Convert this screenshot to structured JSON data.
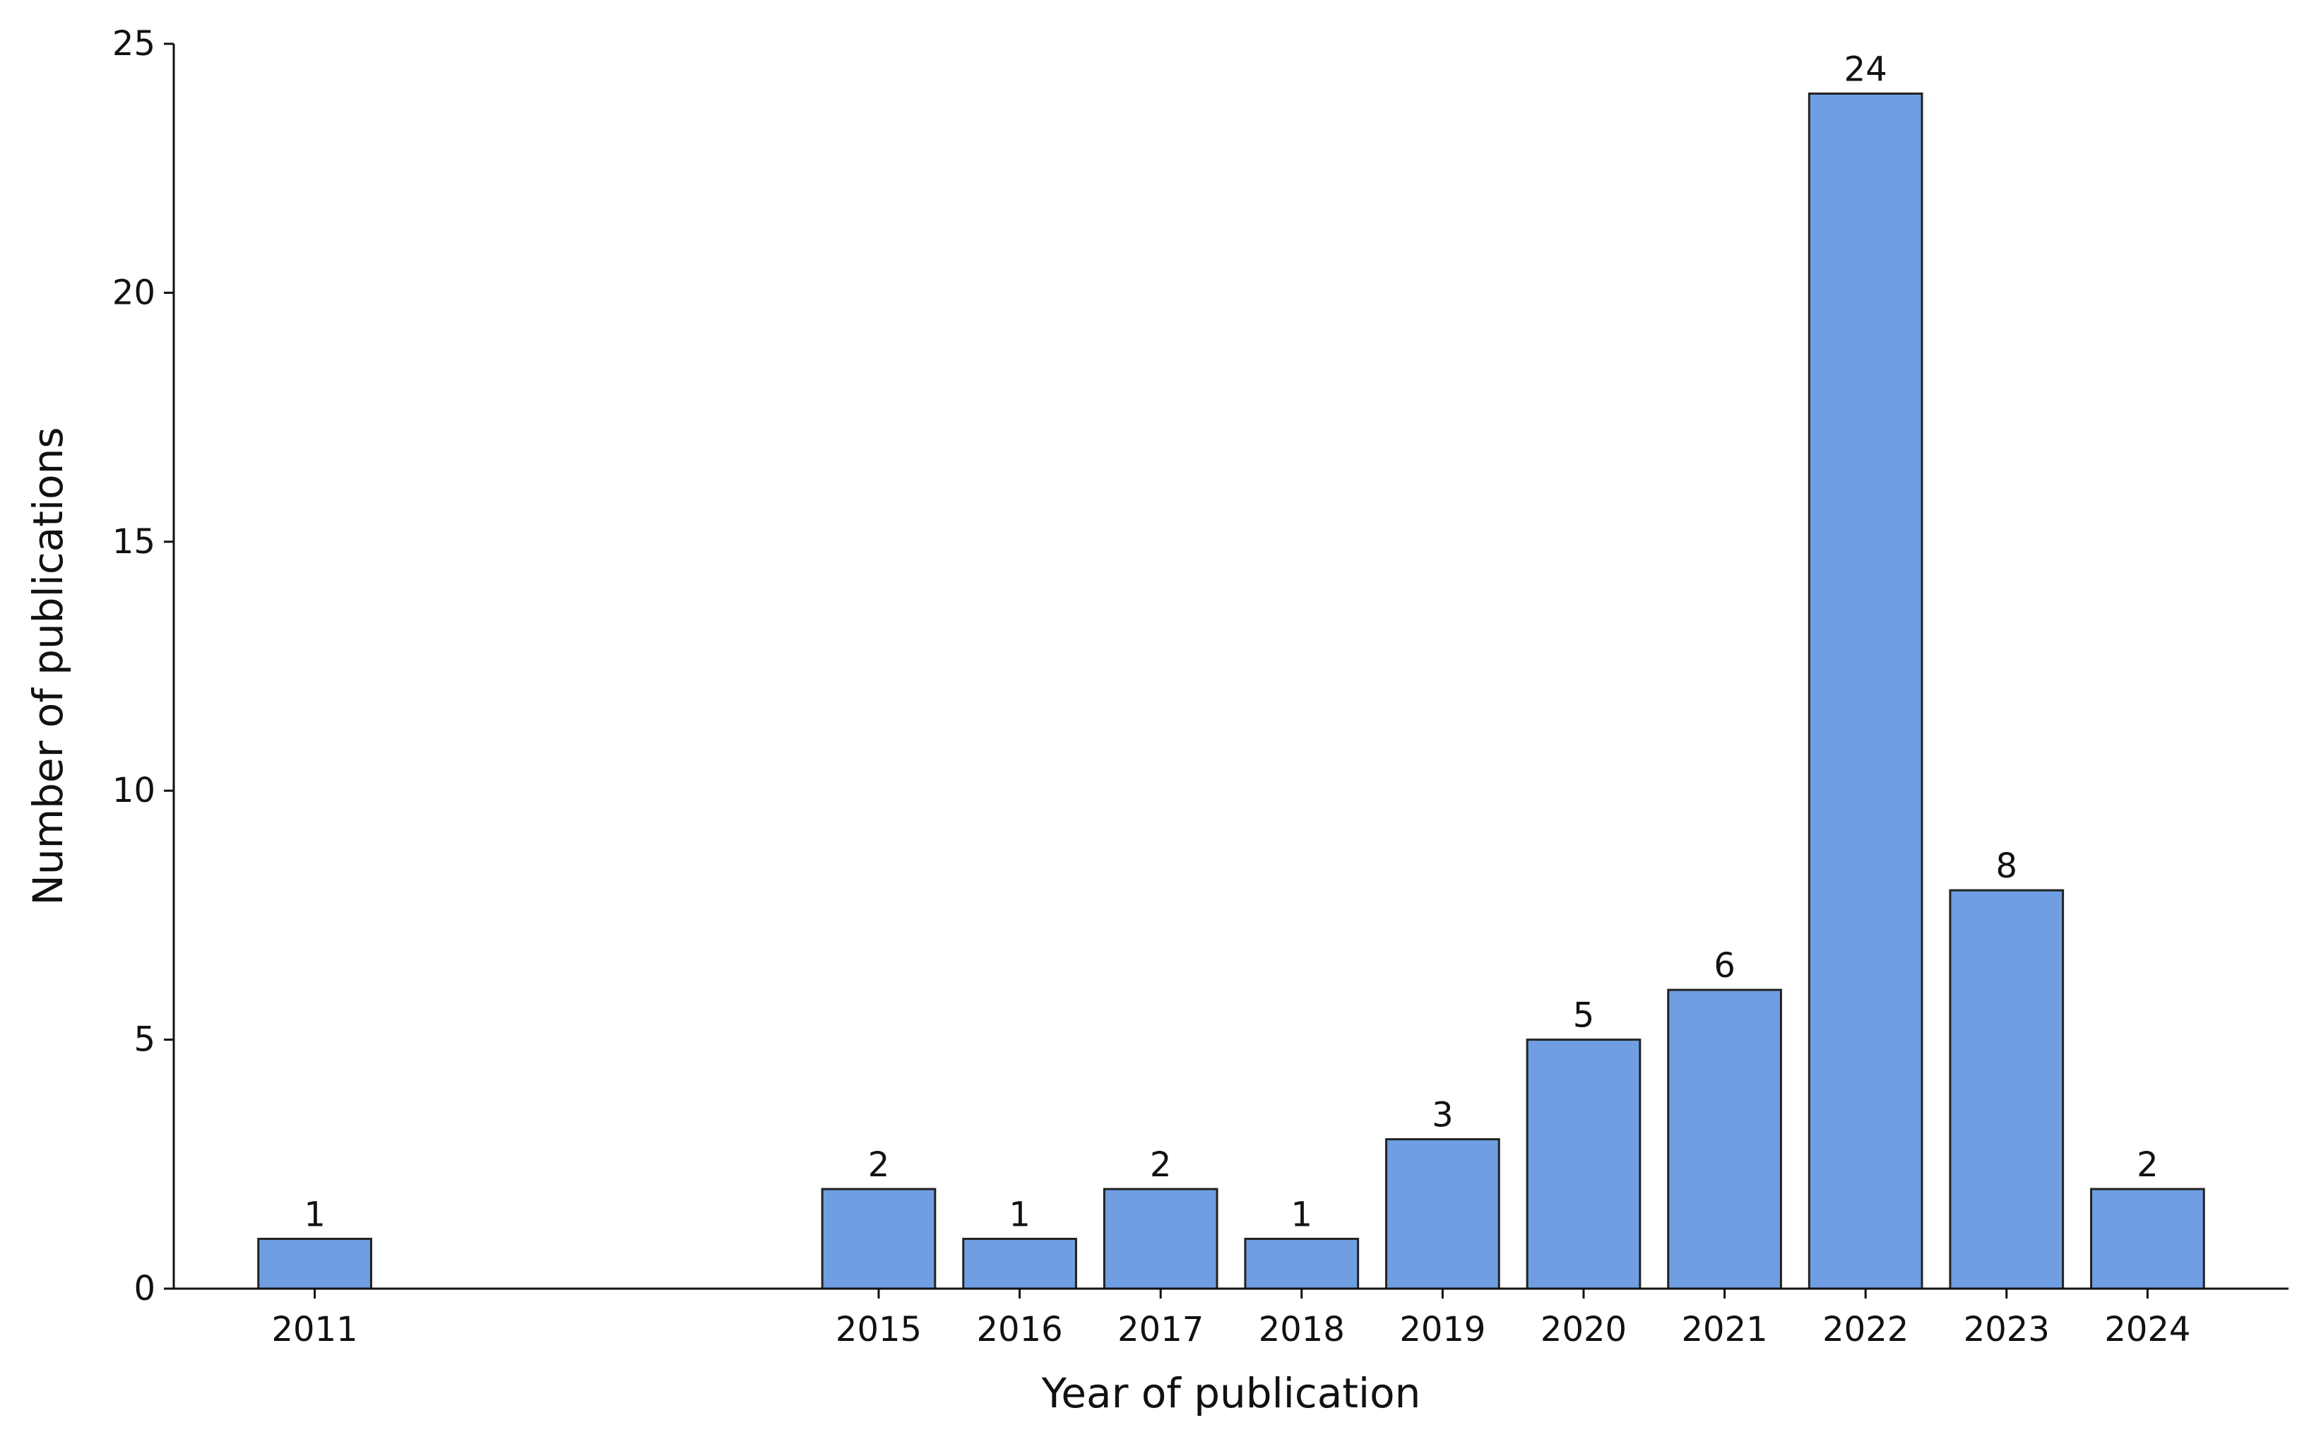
{
  "chart_data": {
    "type": "bar",
    "x": [
      2011,
      2015,
      2016,
      2017,
      2018,
      2019,
      2020,
      2021,
      2022,
      2023,
      2024
    ],
    "values": [
      1,
      2,
      1,
      2,
      1,
      3,
      5,
      6,
      24,
      8,
      2
    ],
    "data_labels": [
      "1",
      "2",
      "1",
      "2",
      "1",
      "3",
      "5",
      "6",
      "24",
      "8",
      "2"
    ],
    "title": "",
    "xlabel": "Year of publication",
    "ylabel": "Number of publications",
    "xlim": [
      2010,
      2025
    ],
    "ylim": [
      0,
      25
    ],
    "yticks": [
      0,
      5,
      10,
      15,
      20,
      25
    ],
    "xticks": [
      2011,
      2015,
      2016,
      2017,
      2018,
      2019,
      2020,
      2021,
      2022,
      2023,
      2024
    ],
    "grid": false,
    "legend": "none",
    "colors": {
      "bar_fill": "#6f9fe2",
      "bar_edge": "#222222",
      "axis": "#111111"
    }
  }
}
